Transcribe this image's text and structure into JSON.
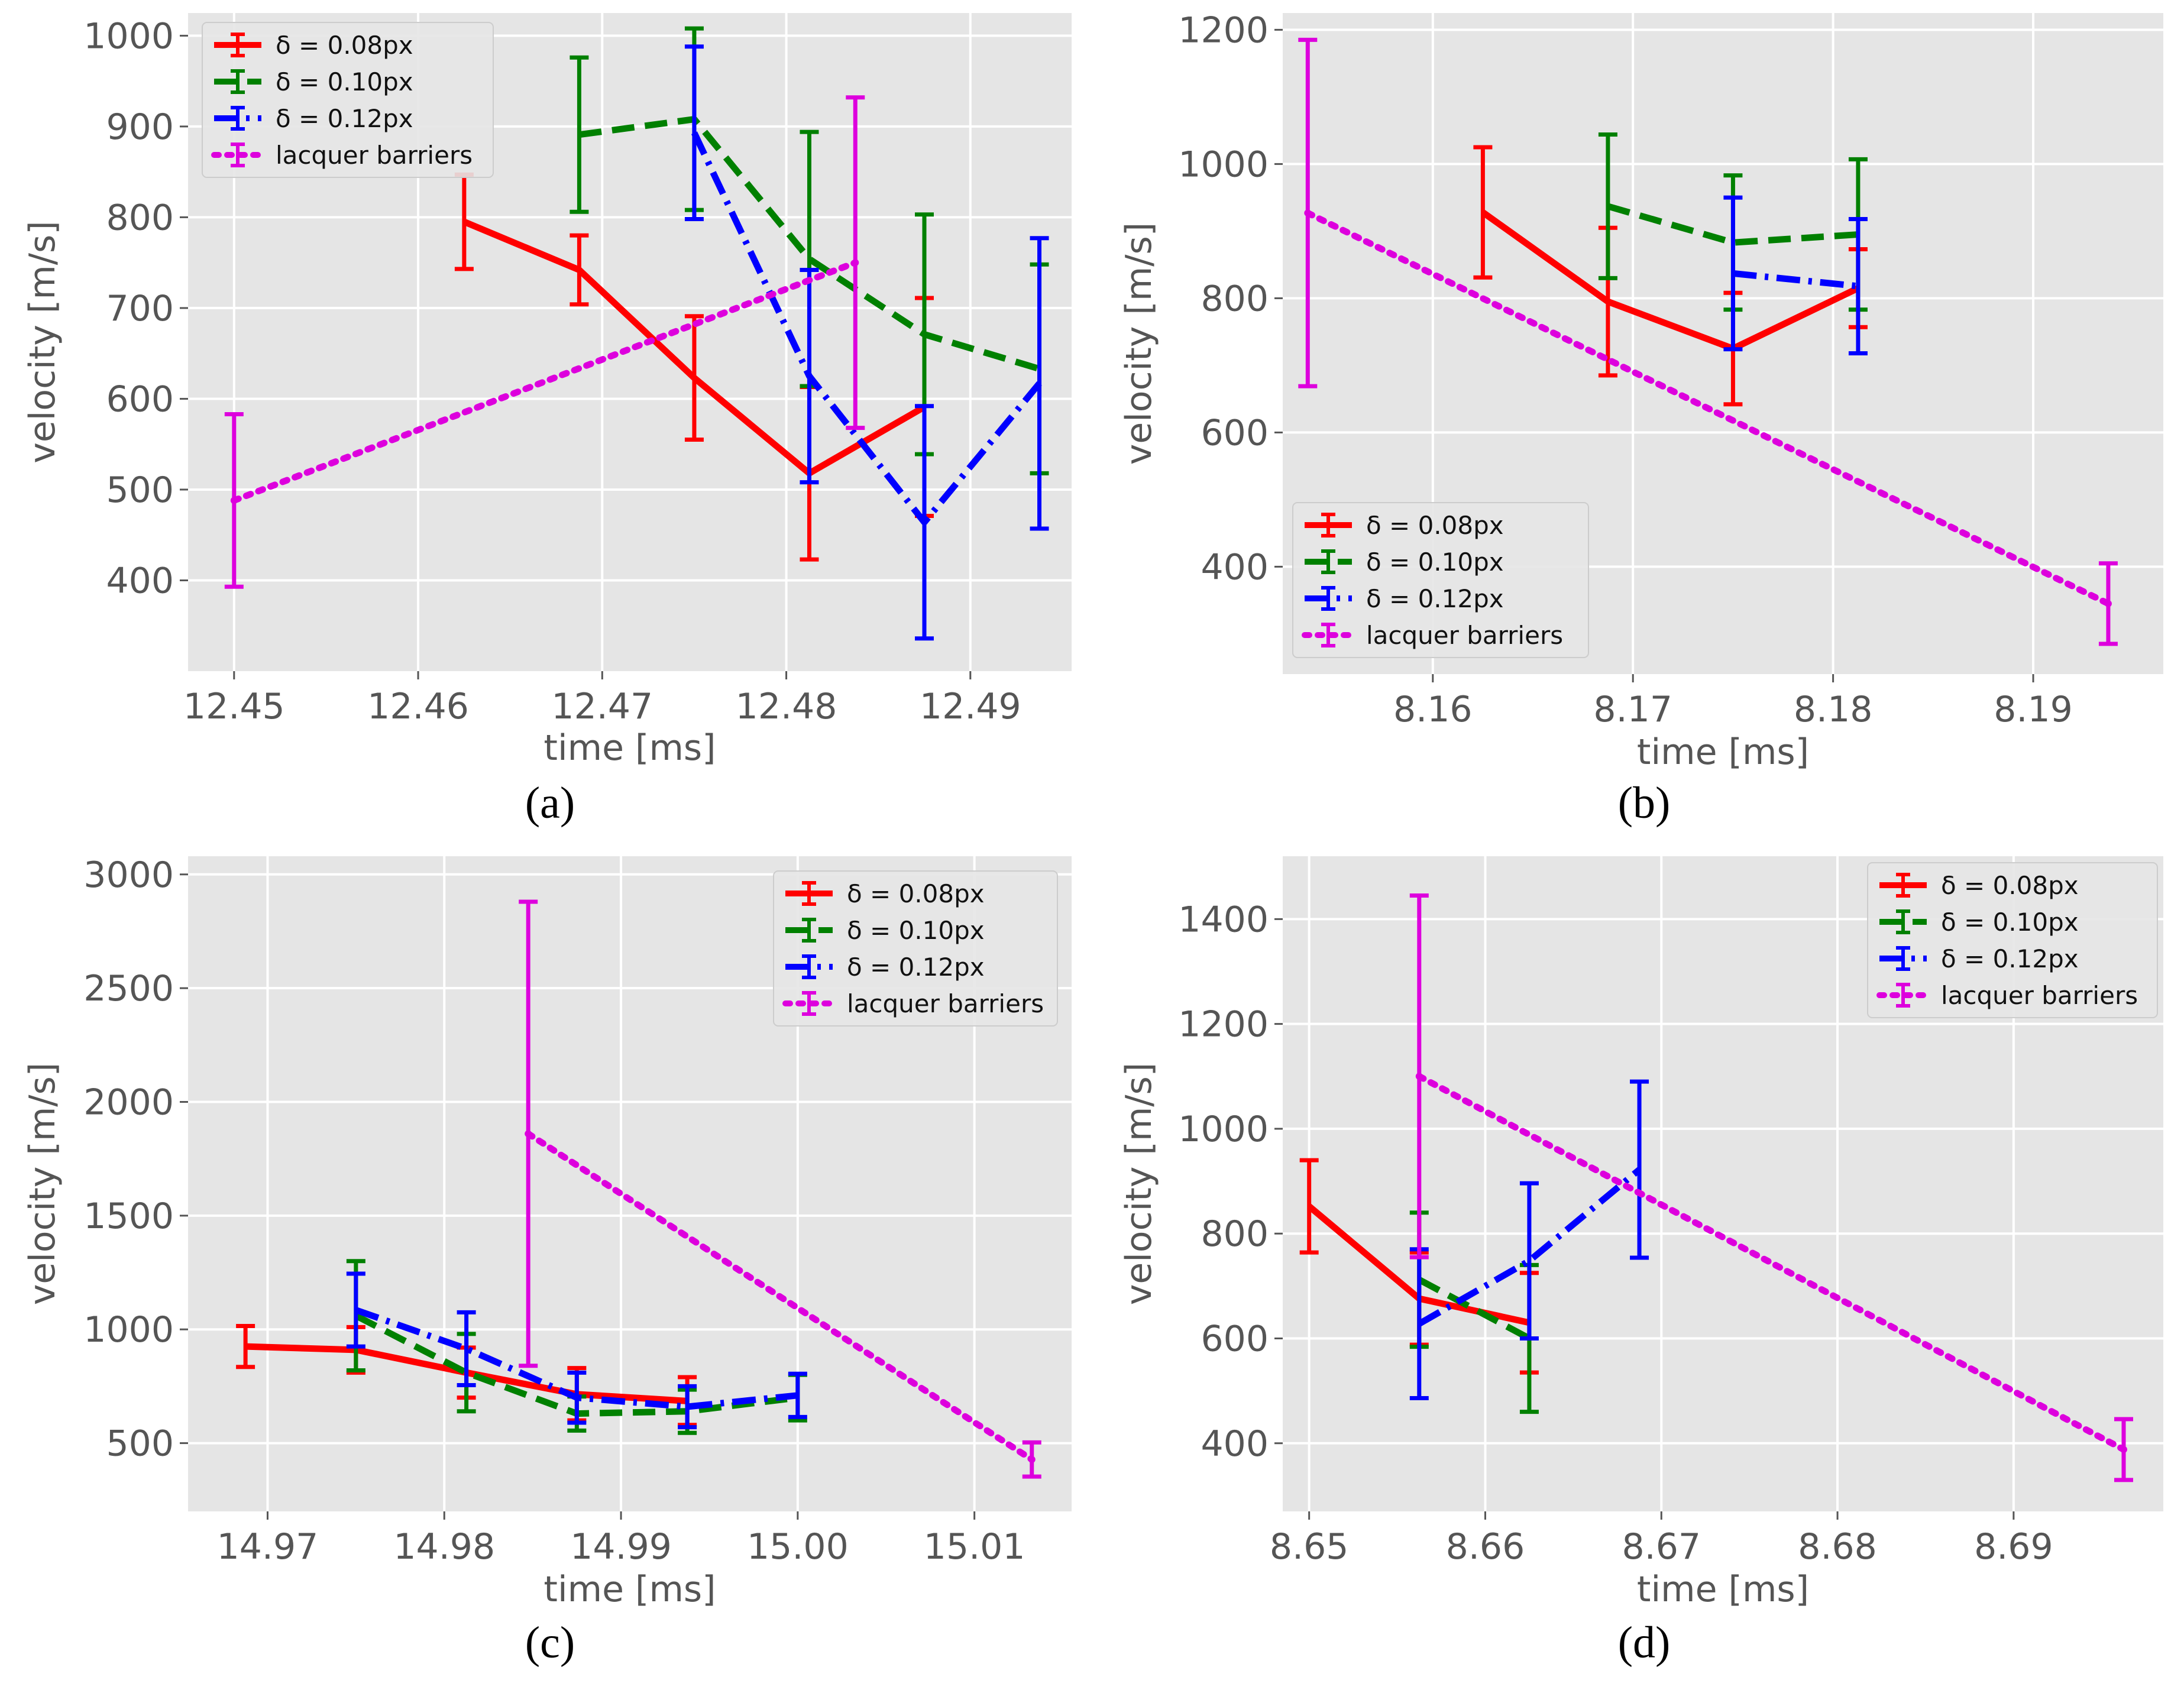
{
  "chart_data": [
    {
      "panel": "a",
      "caption": "(a)",
      "type": "line",
      "xlabel": "time [ms]",
      "ylabel": "velocity [m/s]",
      "xlim": [
        12.4475,
        12.4955
      ],
      "ylim": [
        300,
        1025
      ],
      "xticks": [
        12.45,
        12.46,
        12.47,
        12.48,
        12.49
      ],
      "xtick_labels": [
        "12.45",
        "12.46",
        "12.47",
        "12.48",
        "12.49"
      ],
      "yticks": [
        400,
        500,
        600,
        700,
        800,
        900,
        1000
      ],
      "ytick_labels": [
        "400",
        "500",
        "600",
        "700",
        "800",
        "900",
        "1000"
      ],
      "grid": true,
      "legend_position": "top-left",
      "series": [
        {
          "name": "δ = 0.08px",
          "color": "#ff0000",
          "style": "solid",
          "x": [
            12.4625,
            12.46875,
            12.475,
            12.48125,
            12.4875
          ],
          "y": [
            795,
            742,
            623,
            518,
            591
          ],
          "err": [
            52,
            38,
            68,
            95,
            120
          ]
        },
        {
          "name": "δ = 0.10px",
          "color": "#008000",
          "style": "dashed",
          "x": [
            12.46875,
            12.475,
            12.48125,
            12.4875,
            12.49375
          ],
          "y": [
            891,
            908,
            754,
            671,
            633
          ],
          "err": [
            85,
            100,
            140,
            132,
            115
          ]
        },
        {
          "name": "δ = 0.12px",
          "color": "#0000ff",
          "style": "dashdot",
          "x": [
            12.475,
            12.48125,
            12.4875,
            12.49375
          ],
          "y": [
            893,
            625,
            464,
            617
          ],
          "err": [
            95,
            117,
            128,
            160
          ]
        },
        {
          "name": "lacquer barriers",
          "color": "#dd00dd",
          "style": "dotted",
          "x": [
            12.45,
            12.48375
          ],
          "y": [
            488,
            750
          ],
          "err": [
            95,
            182
          ]
        }
      ]
    },
    {
      "panel": "b",
      "caption": "(b)",
      "type": "line",
      "xlabel": "time [ms]",
      "ylabel": "velocity [m/s]",
      "xlim": [
        8.1525,
        8.1965
      ],
      "ylim": [
        240,
        1225
      ],
      "xticks": [
        8.16,
        8.17,
        8.18,
        8.19
      ],
      "xtick_labels": [
        "8.16",
        "8.17",
        "8.18",
        "8.19"
      ],
      "yticks": [
        400,
        600,
        800,
        1000,
        1200
      ],
      "ytick_labels": [
        "400",
        "600",
        "800",
        "1000",
        "1200"
      ],
      "grid": true,
      "legend_position": "lower-left",
      "series": [
        {
          "name": "δ = 0.08px",
          "color": "#ff0000",
          "style": "solid",
          "x": [
            8.1625,
            8.16875,
            8.175,
            8.18125
          ],
          "y": [
            928,
            795,
            725,
            815
          ],
          "err": [
            97,
            110,
            83,
            58
          ]
        },
        {
          "name": "δ = 0.10px",
          "color": "#008000",
          "style": "dashed",
          "x": [
            8.16875,
            8.175,
            8.18125
          ],
          "y": [
            937,
            883,
            895
          ],
          "err": [
            107,
            100,
            112
          ]
        },
        {
          "name": "δ = 0.12px",
          "color": "#0000ff",
          "style": "dashdot",
          "x": [
            8.175,
            8.18125
          ],
          "y": [
            837,
            818
          ],
          "err": [
            113,
            100
          ]
        },
        {
          "name": "lacquer barriers",
          "color": "#dd00dd",
          "style": "dotted",
          "x": [
            8.15375,
            8.19375
          ],
          "y": [
            927,
            345
          ],
          "err": [
            258,
            60
          ]
        }
      ]
    },
    {
      "panel": "c",
      "caption": "(c)",
      "type": "line",
      "xlabel": "time [ms]",
      "ylabel": "velocity [m/s]",
      "xlim": [
        14.9655,
        15.0155
      ],
      "ylim": [
        200,
        3080
      ],
      "xticks": [
        14.97,
        14.98,
        14.99,
        15.0,
        15.01
      ],
      "xtick_labels": [
        "14.97",
        "14.98",
        "14.99",
        "15.00",
        "15.01"
      ],
      "yticks": [
        500,
        1000,
        1500,
        2000,
        2500,
        3000
      ],
      "ytick_labels": [
        "500",
        "1000",
        "1500",
        "2000",
        "2500",
        "3000"
      ],
      "grid": true,
      "legend_position": "top-right",
      "series": [
        {
          "name": "δ = 0.08px",
          "color": "#ff0000",
          "style": "solid",
          "x": [
            14.96875,
            14.975,
            14.98125,
            14.9875,
            14.99375
          ],
          "y": [
            925,
            910,
            810,
            715,
            685
          ],
          "err": [
            90,
            100,
            110,
            115,
            105
          ]
        },
        {
          "name": "δ = 0.10px",
          "color": "#008000",
          "style": "dashed",
          "x": [
            14.975,
            14.98125,
            14.9875,
            14.99375,
            15.0
          ],
          "y": [
            1060,
            810,
            630,
            640,
            700
          ],
          "err": [
            240,
            170,
            75,
            95,
            100
          ]
        },
        {
          "name": "δ = 0.12px",
          "color": "#0000ff",
          "style": "dashdot",
          "x": [
            14.975,
            14.98125,
            14.9875,
            14.99375,
            15.0
          ],
          "y": [
            1085,
            915,
            700,
            660,
            710
          ],
          "err": [
            160,
            160,
            110,
            90,
            95
          ]
        },
        {
          "name": "lacquer barriers",
          "color": "#dd00dd",
          "style": "dotted",
          "x": [
            14.98475,
            15.01325
          ],
          "y": [
            1860,
            428
          ],
          "err": [
            1020,
            75
          ]
        }
      ]
    },
    {
      "panel": "d",
      "caption": "(d)",
      "type": "line",
      "xlabel": "time [ms]",
      "ylabel": "velocity [m/s]",
      "xlim": [
        8.6485,
        8.6985
      ],
      "ylim": [
        270,
        1520
      ],
      "xticks": [
        8.65,
        8.66,
        8.67,
        8.68,
        8.69
      ],
      "xtick_labels": [
        "8.65",
        "8.66",
        "8.67",
        "8.68",
        "8.69"
      ],
      "yticks": [
        400,
        600,
        800,
        1000,
        1200,
        1400
      ],
      "ytick_labels": [
        "400",
        "600",
        "800",
        "1000",
        "1200",
        "1400"
      ],
      "grid": true,
      "legend_position": "top-right",
      "series": [
        {
          "name": "δ = 0.08px",
          "color": "#ff0000",
          "style": "solid",
          "x": [
            8.65,
            8.65625,
            8.6625
          ],
          "y": [
            852,
            676,
            630
          ],
          "err": [
            88,
            88,
            95
          ]
        },
        {
          "name": "δ = 0.10px",
          "color": "#008000",
          "style": "dashed",
          "x": [
            8.65625,
            8.6625
          ],
          "y": [
            712,
            600
          ],
          "err": [
            128,
            140
          ]
        },
        {
          "name": "δ = 0.12px",
          "color": "#0000ff",
          "style": "dashdot",
          "x": [
            8.65625,
            8.6625,
            8.66875
          ],
          "y": [
            628,
            748,
            922
          ],
          "err": [
            142,
            148,
            168
          ]
        },
        {
          "name": "lacquer barriers",
          "color": "#dd00dd",
          "style": "dotted",
          "x": [
            8.65625,
            8.69625
          ],
          "y": [
            1100,
            388
          ],
          "err": [
            345,
            58
          ]
        }
      ]
    }
  ]
}
